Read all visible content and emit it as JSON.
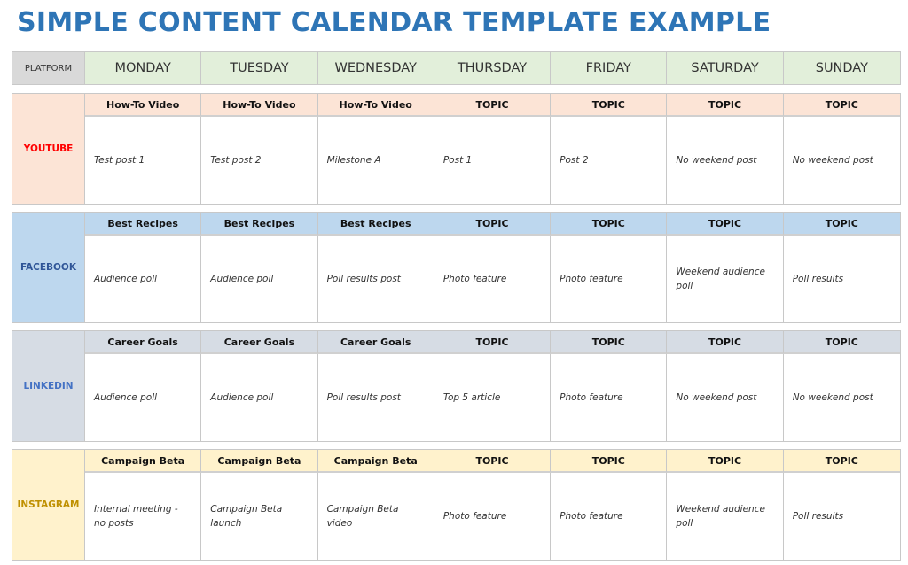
{
  "title": "SIMPLE CONTENT CALENDAR TEMPLATE EXAMPLE",
  "header": {
    "platform": "PLATFORM",
    "days": [
      "MONDAY",
      "TUESDAY",
      "WEDNESDAY",
      "THURSDAY",
      "FRIDAY",
      "SATURDAY",
      "SUNDAY"
    ]
  },
  "colors": {
    "title": "#2e75b6",
    "day_header": "#e2efda",
    "platform_header": "#d9d9d9"
  },
  "platforms": [
    {
      "name": "YOUTUBE",
      "label_color": "#ff0000",
      "bg": "#fce4d6",
      "topics": [
        "How-To Video",
        "How-To Video",
        "How-To Video",
        "TOPIC",
        "TOPIC",
        "TOPIC",
        "TOPIC"
      ],
      "posts": [
        "Test post 1",
        "Test post 2",
        "Milestone A",
        "Post 1",
        "Post 2",
        "No weekend post",
        "No weekend post"
      ]
    },
    {
      "name": "FACEBOOK",
      "label_color": "#2f5597",
      "bg": "#bdd7ee",
      "topics": [
        "Best Recipes",
        "Best Recipes",
        "Best Recipes",
        "TOPIC",
        "TOPIC",
        "TOPIC",
        "TOPIC"
      ],
      "posts": [
        "Audience poll",
        "Audience poll",
        "Poll results post",
        "Photo feature",
        "Photo feature",
        "Weekend audience poll",
        "Poll results"
      ]
    },
    {
      "name": "LINKEDIN",
      "label_color": "#4472c4",
      "bg": "#d6dce4",
      "topics": [
        "Career Goals",
        "Career Goals",
        "Career Goals",
        "TOPIC",
        "TOPIC",
        "TOPIC",
        "TOPIC"
      ],
      "posts": [
        "Audience poll",
        "Audience poll",
        "Poll results post",
        "Top 5 article",
        "Photo feature",
        "No weekend post",
        "No weekend post"
      ]
    },
    {
      "name": "INSTAGRAM",
      "label_color": "#bf9000",
      "bg": "#fff2cc",
      "topics": [
        "Campaign Beta",
        "Campaign Beta",
        "Campaign Beta",
        "TOPIC",
        "TOPIC",
        "TOPIC",
        "TOPIC"
      ],
      "posts": [
        "Internal meeting - no posts",
        "Campaign Beta launch",
        "Campaign Beta video",
        "Photo feature",
        "Photo feature",
        "Weekend audience poll",
        "Poll results"
      ]
    }
  ]
}
